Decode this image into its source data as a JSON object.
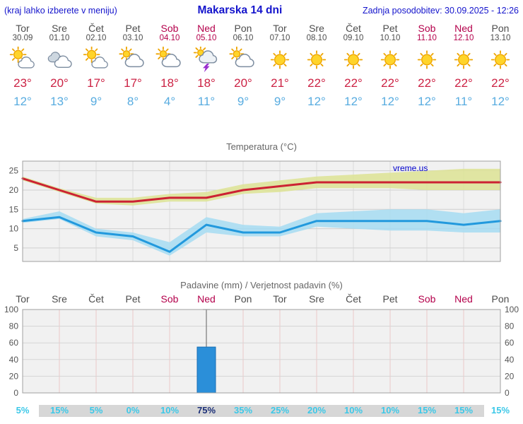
{
  "header": {
    "menu_hint": "(kraj lahko izberete v meniju)",
    "title": "Makarska 14 dni",
    "last_update": "Zadnja posodobitev: 30.09.2025 - 12:26"
  },
  "colors": {
    "header_blue": "#1414cc",
    "weekday_text": "#4d4d4d",
    "weekend_text": "#b4004b",
    "tmax_text": "#cc2244",
    "tmin_text": "#58ace0",
    "temp_max_line": "#cc2233",
    "temp_max_band": "#dde394",
    "temp_min_line": "#2299dd",
    "temp_min_band": "#a6dcf2",
    "precip_bar": "#2b8fd9",
    "probability_text": "#3cc8e8",
    "probability_highlight": "#1b2f77",
    "watermark_blue": "#0000cc"
  },
  "days": [
    {
      "name": "Tor",
      "date": "30.09",
      "weekend": false,
      "icon": "partly-cloudy",
      "tmax": "23°",
      "tmin": "12°"
    },
    {
      "name": "Sre",
      "date": "01.10",
      "weekend": false,
      "icon": "cloudy",
      "tmax": "20°",
      "tmin": "13°"
    },
    {
      "name": "Čet",
      "date": "02.10",
      "weekend": false,
      "icon": "partly-cloudy",
      "tmax": "17°",
      "tmin": "9°"
    },
    {
      "name": "Pet",
      "date": "03.10",
      "weekend": false,
      "icon": "mostly-cloudy",
      "tmax": "17°",
      "tmin": "8°"
    },
    {
      "name": "Sob",
      "date": "04.10",
      "weekend": true,
      "icon": "mostly-cloudy",
      "tmax": "18°",
      "tmin": "4°"
    },
    {
      "name": "Ned",
      "date": "05.10",
      "weekend": true,
      "icon": "thunderstorm",
      "tmax": "18°",
      "tmin": "11°"
    },
    {
      "name": "Pon",
      "date": "06.10",
      "weekend": false,
      "icon": "mostly-cloudy",
      "tmax": "20°",
      "tmin": "9°"
    },
    {
      "name": "Tor",
      "date": "07.10",
      "weekend": false,
      "icon": "sunny",
      "tmax": "21°",
      "tmin": "9°"
    },
    {
      "name": "Sre",
      "date": "08.10",
      "weekend": false,
      "icon": "sunny",
      "tmax": "22°",
      "tmin": "12°"
    },
    {
      "name": "Čet",
      "date": "09.10",
      "weekend": false,
      "icon": "sunny",
      "tmax": "22°",
      "tmin": "12°"
    },
    {
      "name": "Pet",
      "date": "10.10",
      "weekend": false,
      "icon": "sunny",
      "tmax": "22°",
      "tmin": "12°"
    },
    {
      "name": "Sob",
      "date": "11.10",
      "weekend": true,
      "icon": "sunny",
      "tmax": "22°",
      "tmin": "12°"
    },
    {
      "name": "Ned",
      "date": "12.10",
      "weekend": true,
      "icon": "sunny",
      "tmax": "22°",
      "tmin": "11°"
    },
    {
      "name": "Pon",
      "date": "13.10",
      "weekend": false,
      "icon": "sunny",
      "tmax": "22°",
      "tmin": "12°"
    }
  ],
  "chart_data": [
    {
      "type": "line",
      "title": "Temperatura (°C)",
      "x_labels": [
        "Tor 30.09",
        "Sre 01.10",
        "Čet 02.10",
        "Pet 03.10",
        "Sob 04.10",
        "Ned 05.10",
        "Pon 06.10",
        "Tor 07.10",
        "Sre 08.10",
        "Čet 09.10",
        "Pet 10.10",
        "Sob 11.10",
        "Ned 12.10",
        "Pon 13.10"
      ],
      "ylim": [
        1.5,
        27.5
      ],
      "yticks": [
        5,
        10,
        15,
        20,
        25
      ],
      "grid": true,
      "watermark": "vreme.us",
      "series": [
        {
          "name": "tmax",
          "values": [
            23,
            20,
            17,
            17,
            18,
            18,
            20,
            21,
            22,
            22,
            22,
            22,
            22,
            22
          ]
        },
        {
          "name": "tmax_range_hi",
          "values": [
            23.5,
            20.5,
            18,
            18,
            19,
            19.5,
            21.5,
            22.5,
            23.5,
            24,
            24.5,
            25,
            25.5,
            25.5
          ]
        },
        {
          "name": "tmax_range_lo",
          "values": [
            22.5,
            19.5,
            16.5,
            16,
            17,
            17,
            19,
            19.5,
            20.5,
            20.5,
            20.5,
            20,
            20,
            20
          ]
        },
        {
          "name": "tmin",
          "values": [
            12,
            13,
            9,
            8,
            4,
            11,
            9,
            9,
            12,
            12,
            12,
            12,
            11,
            12
          ]
        },
        {
          "name": "tmin_range_hi",
          "values": [
            12.5,
            14.5,
            10,
            9,
            6.5,
            13,
            11,
            10.5,
            14,
            14.5,
            15,
            15,
            14,
            15
          ]
        },
        {
          "name": "tmin_range_lo",
          "values": [
            11.5,
            12.5,
            8,
            7,
            3,
            9,
            8,
            8,
            10.5,
            10,
            9.5,
            9.5,
            9,
            9
          ]
        }
      ]
    },
    {
      "type": "bar",
      "title": "Padavine (mm) / Verjetnost padavin (%)",
      "categories": [
        "Tor",
        "Sre",
        "Čet",
        "Pet",
        "Sob",
        "Ned",
        "Pon",
        "Tor",
        "Sre",
        "Čet",
        "Pet",
        "Sob",
        "Ned",
        "Pon"
      ],
      "weekend_flags": [
        false,
        false,
        false,
        false,
        true,
        true,
        false,
        false,
        false,
        false,
        false,
        true,
        true,
        false
      ],
      "precip_mm": [
        0,
        0,
        0,
        0,
        0,
        55,
        0,
        0,
        0,
        0,
        0,
        0,
        0,
        0
      ],
      "whisker_top": [
        null,
        null,
        null,
        null,
        null,
        100,
        null,
        null,
        null,
        null,
        null,
        null,
        null,
        null
      ],
      "probability_pct": [
        5,
        15,
        5,
        0,
        10,
        75,
        35,
        25,
        20,
        10,
        10,
        15,
        15,
        15
      ],
      "highlight_index": 5,
      "ylim": [
        0,
        100
      ],
      "yticks": [
        0,
        20,
        40,
        60,
        80,
        100
      ]
    }
  ]
}
